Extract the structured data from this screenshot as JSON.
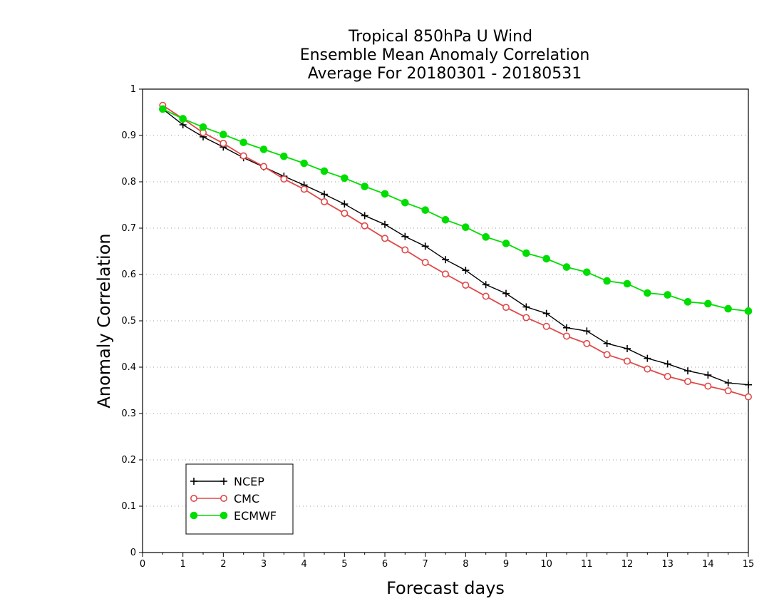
{
  "chart_data": {
    "type": "line",
    "title_lines": [
      "Tropical 850hPa U Wind",
      "Ensemble Mean Anomaly Correlation",
      "Average For 20180301 - 20180531"
    ],
    "xlabel": "Forecast days",
    "ylabel": "Anomaly Correlation",
    "xlim": [
      0,
      15
    ],
    "ylim": [
      0,
      1
    ],
    "x_ticks": [
      "0",
      "1",
      "2",
      "3",
      "4",
      "5",
      "6",
      "7",
      "8",
      "9",
      "10",
      "11",
      "12",
      "13",
      "14",
      "15"
    ],
    "y_ticks": [
      "0",
      "0.1",
      "0.2",
      "0.3",
      "0.4",
      "0.5",
      "0.6",
      "0.7",
      "0.8",
      "0.9",
      "1"
    ],
    "grid": "horizontal dotted",
    "legend_position": "bottom-left",
    "x": [
      0.5,
      1,
      1.5,
      2,
      2.5,
      3,
      3.5,
      4,
      4.5,
      5,
      5.5,
      6,
      6.5,
      7,
      7.5,
      8,
      8.5,
      9,
      9.5,
      10,
      10.5,
      11,
      11.5,
      12,
      12.5,
      13,
      13.5,
      14,
      14.5,
      15
    ],
    "series": [
      {
        "name": "NCEP",
        "color": "#000000",
        "marker": "plus",
        "values": [
          0.957,
          0.923,
          0.897,
          0.875,
          0.852,
          0.832,
          0.812,
          0.793,
          0.773,
          0.752,
          0.727,
          0.708,
          0.682,
          0.661,
          0.632,
          0.609,
          0.578,
          0.559,
          0.53,
          0.516,
          0.485,
          0.478,
          0.451,
          0.44,
          0.419,
          0.407,
          0.392,
          0.383,
          0.366,
          0.362
        ]
      },
      {
        "name": "CMC",
        "color": "#e04848",
        "marker": "open-circle",
        "values": [
          0.965,
          0.936,
          0.906,
          0.883,
          0.856,
          0.833,
          0.806,
          0.784,
          0.757,
          0.732,
          0.705,
          0.678,
          0.653,
          0.626,
          0.601,
          0.577,
          0.553,
          0.529,
          0.507,
          0.488,
          0.467,
          0.451,
          0.427,
          0.413,
          0.396,
          0.38,
          0.369,
          0.359,
          0.349,
          0.336
        ]
      },
      {
        "name": "ECMWF",
        "color": "#00dd00",
        "marker": "filled-circle",
        "values": [
          0.957,
          0.936,
          0.918,
          0.902,
          0.885,
          0.87,
          0.855,
          0.84,
          0.823,
          0.808,
          0.79,
          0.774,
          0.755,
          0.739,
          0.718,
          0.702,
          0.681,
          0.667,
          0.646,
          0.634,
          0.616,
          0.605,
          0.586,
          0.58,
          0.56,
          0.556,
          0.541,
          0.537,
          0.526,
          0.521
        ]
      }
    ]
  }
}
